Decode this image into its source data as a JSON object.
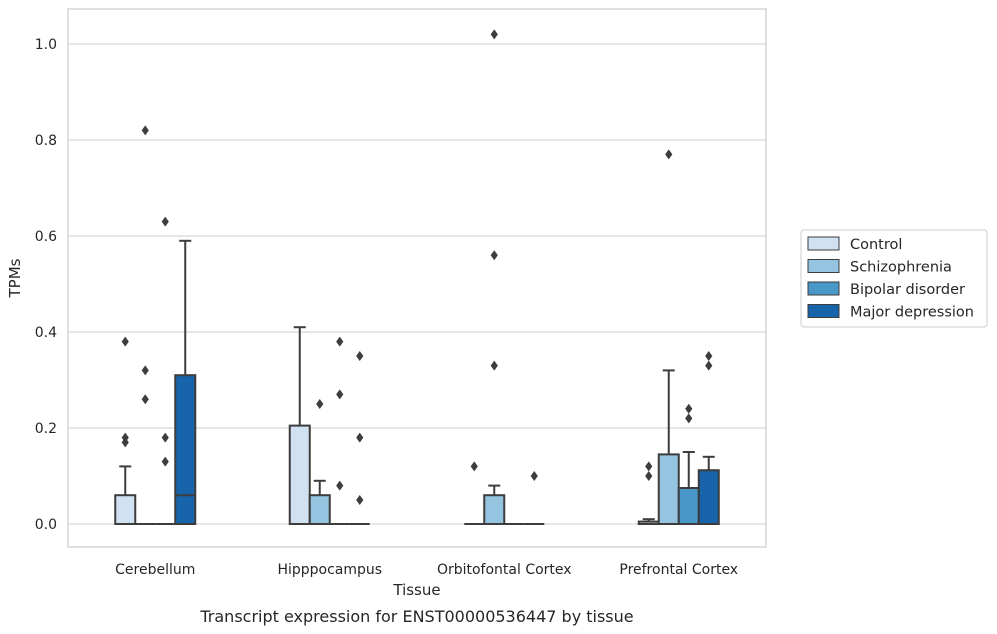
{
  "chart_data": {
    "type": "box",
    "title": "",
    "caption": "Transcript expression for ENST00000536447 by tissue",
    "xlabel": "Tissue",
    "ylabel": "TPMs",
    "ylim": [
      -0.05,
      1.07
    ],
    "yticks": [
      0.0,
      0.2,
      0.4,
      0.6,
      0.8,
      1.0
    ],
    "ytick_labels": [
      "0.0",
      "0.2",
      "0.4",
      "0.6",
      "0.8",
      "1.0"
    ],
    "grid": "horizontal",
    "legend_position": "right",
    "categories": [
      "Cerebellum",
      "Hipppocampus",
      "Orbitofontal Cortex",
      "Prefrontal Cortex"
    ],
    "series": [
      {
        "name": "Control",
        "color": "#d0e1f2",
        "boxes": [
          {
            "q1": 0.0,
            "median": 0.0,
            "q3": 0.06,
            "whisker_low": 0.0,
            "whisker_high": 0.12,
            "outliers": [
              0.17,
              0.18,
              0.38
            ]
          },
          {
            "q1": 0.0,
            "median": 0.0,
            "q3": 0.205,
            "whisker_low": 0.0,
            "whisker_high": 0.41,
            "outliers": []
          },
          {
            "q1": 0.0,
            "median": 0.0,
            "q3": 0.0,
            "whisker_low": 0.0,
            "whisker_high": 0.0,
            "outliers": [
              0.12
            ]
          },
          {
            "q1": 0.0,
            "median": 0.0,
            "q3": 0.005,
            "whisker_low": 0.0,
            "whisker_high": 0.01,
            "outliers": [
              0.1,
              0.12
            ]
          }
        ]
      },
      {
        "name": "Schizophrenia",
        "color": "#94c4df",
        "boxes": [
          {
            "q1": 0.0,
            "median": 0.0,
            "q3": 0.0,
            "whisker_low": 0.0,
            "whisker_high": 0.0,
            "outliers": [
              0.26,
              0.32,
              0.82
            ]
          },
          {
            "q1": 0.0,
            "median": 0.0,
            "q3": 0.06,
            "whisker_low": 0.0,
            "whisker_high": 0.09,
            "outliers": [
              0.25
            ]
          },
          {
            "q1": 0.0,
            "median": 0.0,
            "q3": 0.06,
            "whisker_low": 0.0,
            "whisker_high": 0.08,
            "outliers": [
              0.33,
              0.56,
              1.02
            ]
          },
          {
            "q1": 0.0,
            "median": 0.0,
            "q3": 0.145,
            "whisker_low": 0.0,
            "whisker_high": 0.32,
            "outliers": [
              0.77
            ]
          }
        ]
      },
      {
        "name": "Bipolar disorder",
        "color": "#4a98c9",
        "boxes": [
          {
            "q1": 0.0,
            "median": 0.0,
            "q3": 0.0,
            "whisker_low": 0.0,
            "whisker_high": 0.0,
            "outliers": [
              0.13,
              0.18,
              0.63
            ]
          },
          {
            "q1": 0.0,
            "median": 0.0,
            "q3": 0.0,
            "whisker_low": 0.0,
            "whisker_high": 0.0,
            "outliers": [
              0.08,
              0.27,
              0.38
            ]
          },
          {
            "q1": 0.0,
            "median": 0.0,
            "q3": 0.0,
            "whisker_low": 0.0,
            "whisker_high": 0.0,
            "outliers": []
          },
          {
            "q1": 0.0,
            "median": 0.0,
            "q3": 0.075,
            "whisker_low": 0.0,
            "whisker_high": 0.15,
            "outliers": [
              0.22,
              0.24
            ]
          }
        ]
      },
      {
        "name": "Major depression",
        "color": "#1764ab",
        "boxes": [
          {
            "q1": 0.0,
            "median": 0.06,
            "q3": 0.31,
            "whisker_low": 0.0,
            "whisker_high": 0.59,
            "outliers": []
          },
          {
            "q1": 0.0,
            "median": 0.0,
            "q3": 0.0,
            "whisker_low": 0.0,
            "whisker_high": 0.0,
            "outliers": [
              0.05,
              0.18,
              0.35
            ]
          },
          {
            "q1": 0.0,
            "median": 0.0,
            "q3": 0.0,
            "whisker_low": 0.0,
            "whisker_high": 0.0,
            "outliers": [
              0.1
            ]
          },
          {
            "q1": 0.0,
            "median": 0.0,
            "q3": 0.112,
            "whisker_low": 0.0,
            "whisker_high": 0.14,
            "outliers": [
              0.33,
              0.35
            ]
          }
        ]
      }
    ]
  }
}
